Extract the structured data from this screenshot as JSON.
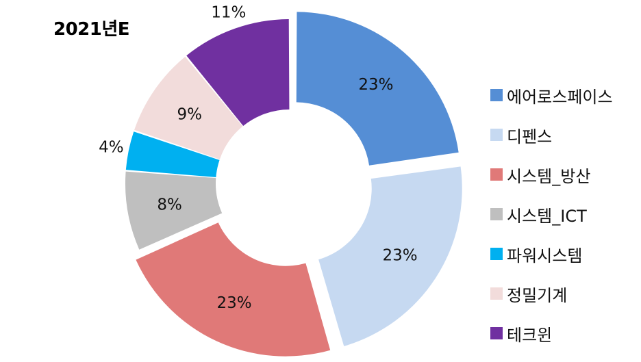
{
  "chart_data": {
    "type": "pie",
    "title": "2021년E",
    "donut": true,
    "exploded_slices": [
      "에어로스페이스",
      "디펜스",
      "시스템_방산"
    ],
    "legend_position": "right",
    "slices": [
      {
        "name": "에어로스페이스",
        "value": 23,
        "label": "23%",
        "color": "#558ED5"
      },
      {
        "name": "디펜스",
        "value": 23,
        "label": "23%",
        "color": "#C6D9F1"
      },
      {
        "name": "시스템_방산",
        "value": 23,
        "label": "23%",
        "color": "#E07978"
      },
      {
        "name": "시스템_ICT",
        "value": 8,
        "label": "8%",
        "color": "#BFBFBF"
      },
      {
        "name": "파워시스템",
        "value": 4,
        "label": "4%",
        "color": "#00B0F0"
      },
      {
        "name": "정밀기계",
        "value": 9,
        "label": "9%",
        "color": "#F2DCDB"
      },
      {
        "name": "테크윈",
        "value": 11,
        "label": "11%",
        "color": "#7030A0"
      }
    ]
  }
}
